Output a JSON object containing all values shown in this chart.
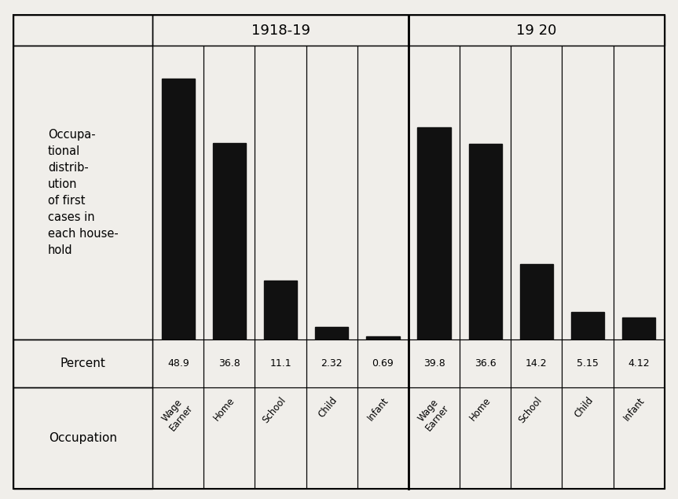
{
  "title_1918": "1918-19",
  "title_1920": "19 20",
  "values_1918": [
    48.9,
    36.8,
    11.1,
    2.32,
    0.69
  ],
  "values_1920": [
    39.8,
    36.6,
    14.2,
    5.15,
    4.12
  ],
  "percent_labels_1918": [
    "48.9",
    "36.8",
    "11.1",
    "2.32",
    "0.69"
  ],
  "percent_labels_1920": [
    "39.8",
    "36.6",
    "14.2",
    "5.15",
    "4.12"
  ],
  "occ_labels": [
    "Wage\nEarner",
    "Home",
    "School",
    "Child",
    "Infant"
  ],
  "bar_color": "#111111",
  "bg_color": "#f0eeea",
  "ylabel_lines": [
    "Occupa-",
    "tional",
    "distrib-",
    "ution",
    "of first",
    "cases in",
    "each house-",
    "hold"
  ],
  "percent_label": "Percent",
  "occ_label": "Occupation",
  "ylim_max": 55
}
